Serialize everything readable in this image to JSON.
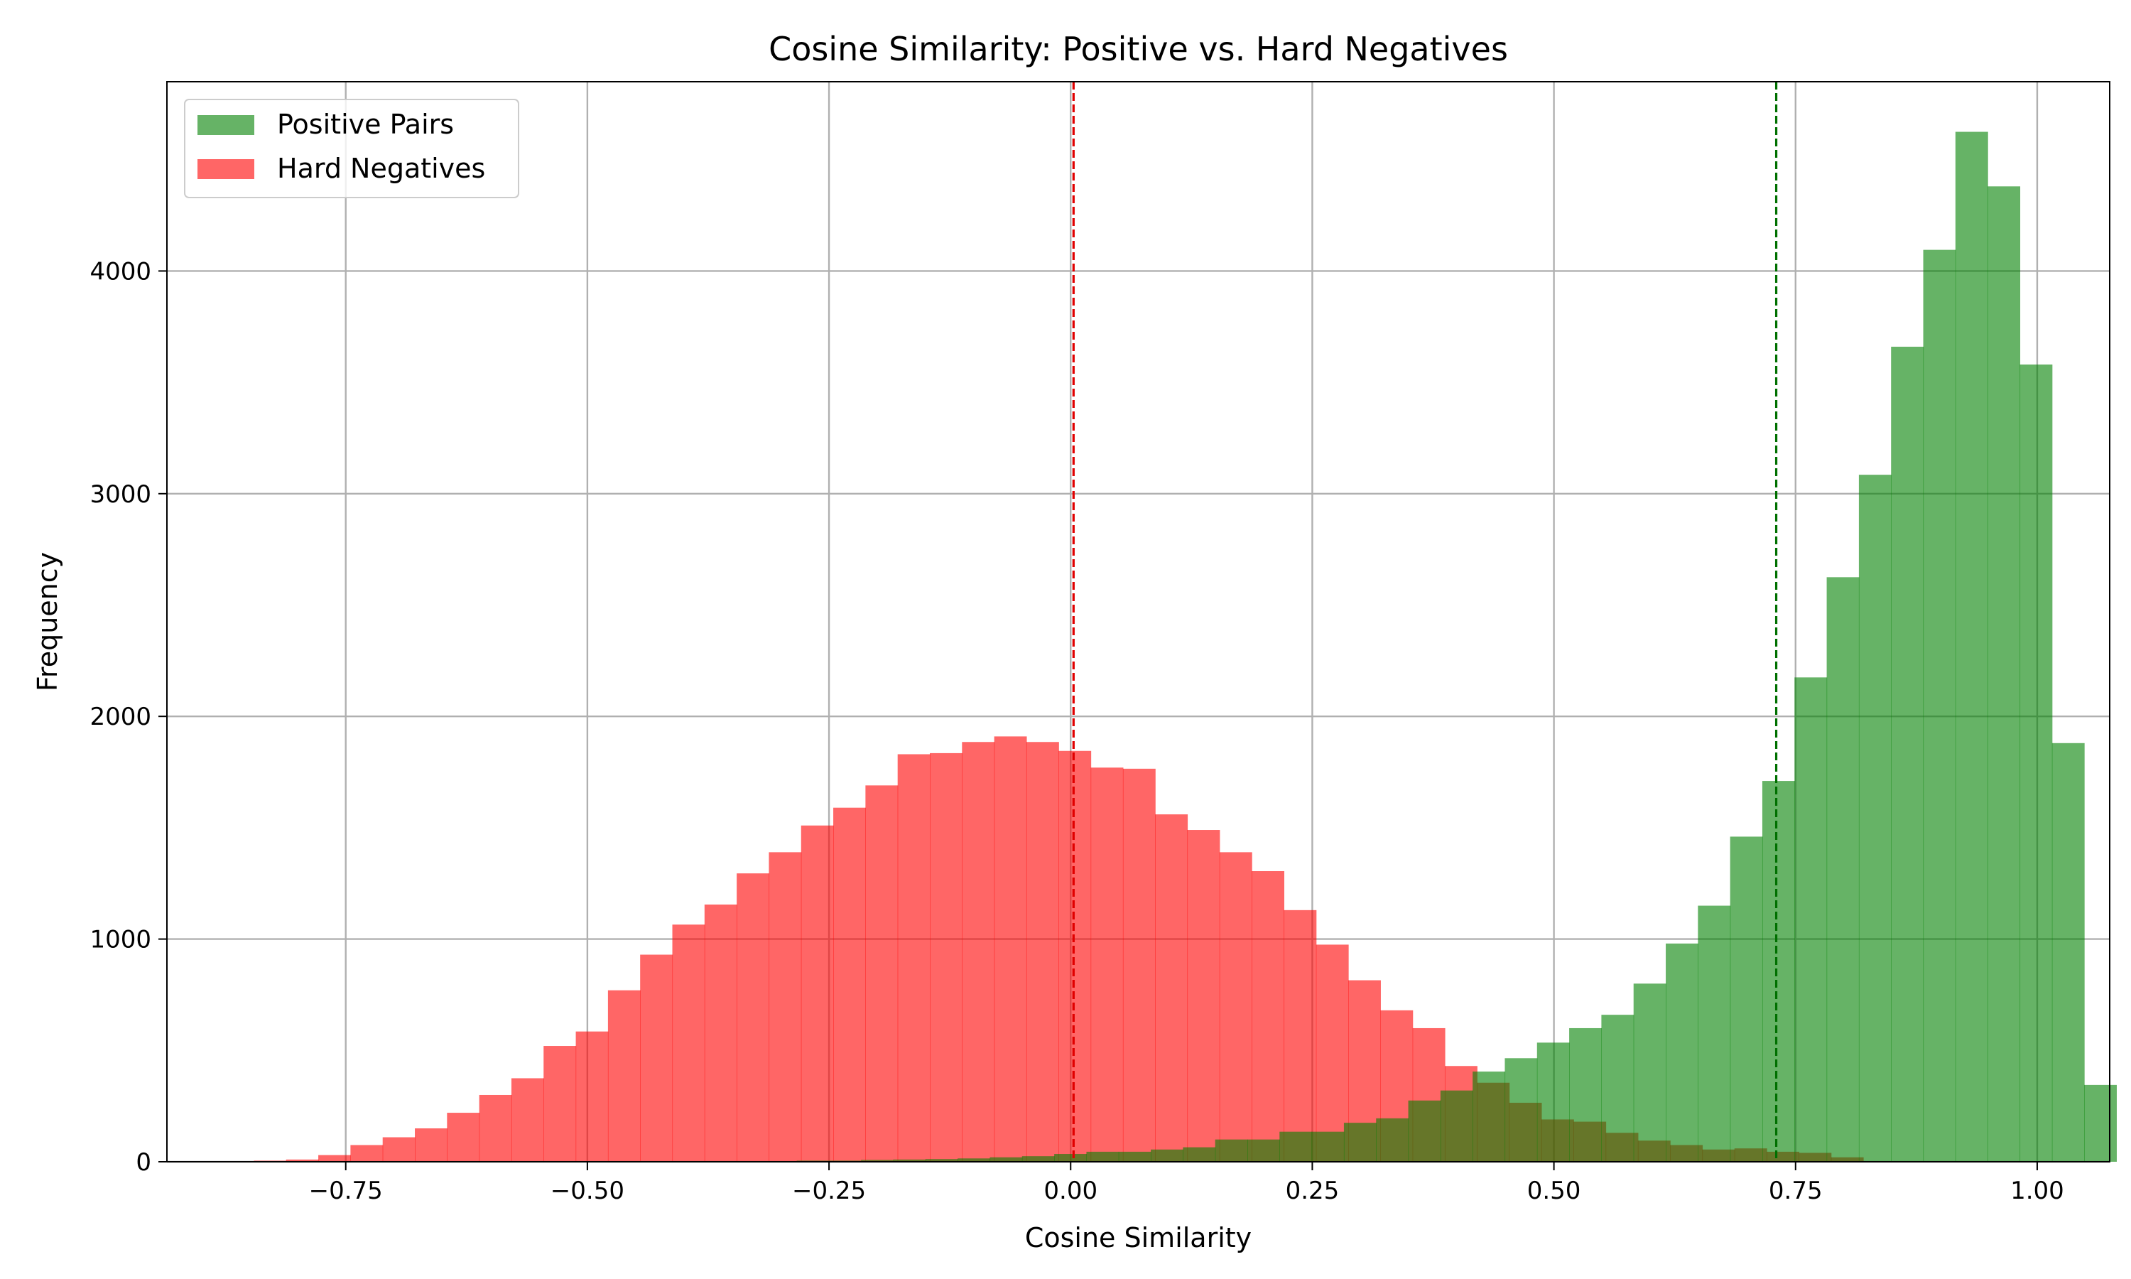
{
  "chart_data": {
    "type": "histogram",
    "title": "Cosine Similarity: Positive vs. Hard Negatives",
    "xlabel": "Cosine Similarity",
    "ylabel": "Frequency",
    "xlim": [
      -0.935,
      1.075
    ],
    "ylim": [
      0,
      4850
    ],
    "xticks": [
      -0.75,
      -0.5,
      -0.25,
      0.0,
      0.25,
      0.5,
      0.75,
      1.0
    ],
    "xtick_labels": [
      "−0.75",
      "−0.50",
      "−0.25",
      "0.00",
      "0.25",
      "0.50",
      "0.75",
      "1.00"
    ],
    "yticks": [
      0,
      1000,
      2000,
      3000,
      4000
    ],
    "ytick_labels": [
      "0",
      "1000",
      "2000",
      "3000",
      "4000"
    ],
    "grid": true,
    "legend": "top-left",
    "series": [
      {
        "name": "Hard Negatives",
        "color": "#ff0000",
        "alpha": 0.6,
        "bin_start": -0.845,
        "bin_width": 0.0333,
        "values": [
          5,
          10,
          30,
          75,
          110,
          150,
          220,
          300,
          375,
          520,
          585,
          770,
          930,
          1065,
          1155,
          1295,
          1390,
          1510,
          1590,
          1690,
          1830,
          1835,
          1885,
          1910,
          1885,
          1845,
          1770,
          1765,
          1560,
          1490,
          1390,
          1305,
          1130,
          975,
          815,
          680,
          600,
          430,
          355,
          265,
          190,
          180,
          130,
          95,
          75,
          55,
          60,
          45,
          40,
          20
        ]
      },
      {
        "name": "Positive Pairs",
        "color": "#008000",
        "alpha": 0.6,
        "bin_start": -0.35,
        "bin_width": 0.0333,
        "values": [
          3,
          3,
          5,
          5,
          8,
          10,
          12,
          15,
          20,
          25,
          35,
          45,
          45,
          55,
          65,
          100,
          100,
          135,
          135,
          175,
          195,
          275,
          320,
          405,
          465,
          535,
          600,
          660,
          800,
          980,
          1150,
          1460,
          1710,
          2175,
          2625,
          3085,
          3660,
          4095,
          4625,
          4380,
          3580,
          1880,
          345
        ]
      }
    ],
    "mean_lines": [
      {
        "series": "Hard Negatives",
        "x": 0.003,
        "color": "#e00000",
        "style": "dashed"
      },
      {
        "series": "Positive Pairs",
        "x": 0.73,
        "color": "#007000",
        "style": "dashed"
      }
    ]
  }
}
